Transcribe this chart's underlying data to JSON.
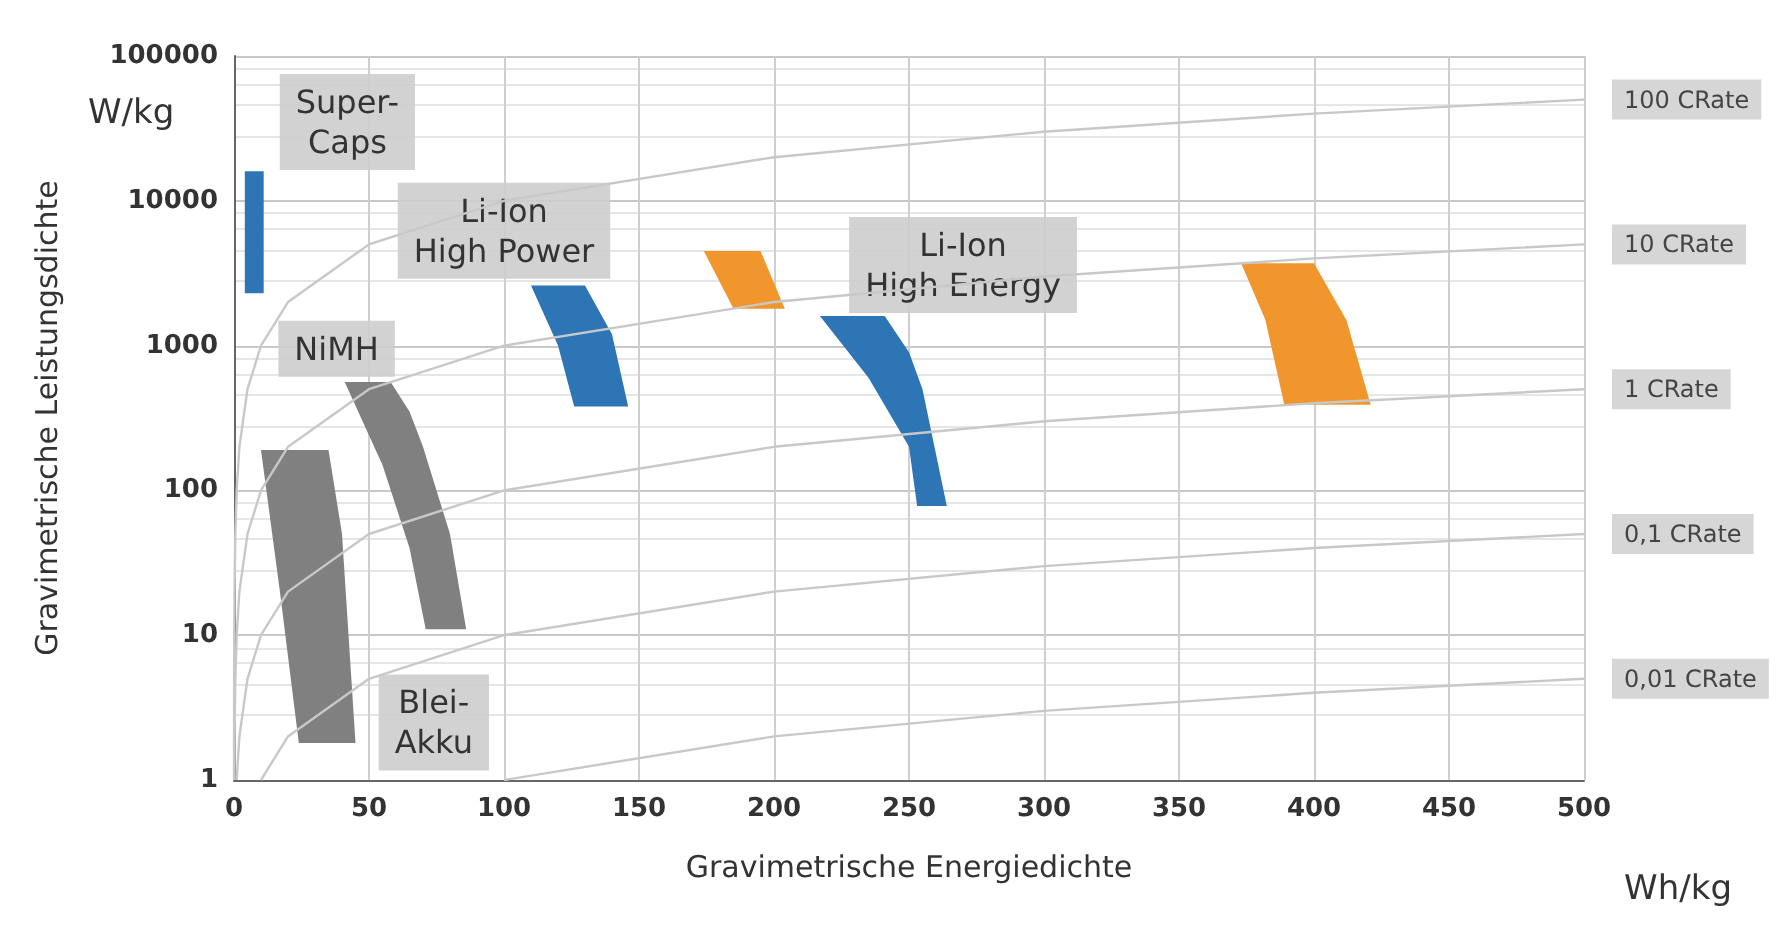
{
  "chart_data": {
    "type": "area",
    "xlabel": "Gravimetrische Energiedichte",
    "ylabel": "Gravimetrische Leistungsdichte",
    "xlim": [
      0,
      500
    ],
    "xticks": [
      0,
      50,
      100,
      150,
      200,
      250,
      300,
      350,
      400,
      450,
      500
    ],
    "ylim": [
      1,
      100000
    ],
    "yticks": [
      1,
      10,
      100,
      1000,
      10000,
      100000
    ],
    "log": "y",
    "grid": true,
    "legend": false,
    "series": [
      {
        "type": "line",
        "name": "100 CRate",
        "color": "#c8c8c8",
        "x": [
          0.01,
          0.02,
          0.05,
          0.1,
          0.2,
          0.5,
          1,
          2,
          5,
          10,
          20,
          50,
          100,
          200,
          300,
          400,
          500
        ],
        "values": [
          1,
          2,
          5,
          10,
          20,
          50,
          100,
          200,
          500,
          1000,
          2000,
          5000,
          10000,
          20000,
          30000,
          40000,
          50000
        ]
      },
      {
        "type": "line",
        "name": "10 CRate",
        "color": "#c8c8c8",
        "x": [
          0.1,
          0.2,
          0.5,
          1,
          2,
          5,
          10,
          20,
          50,
          100,
          200,
          300,
          400,
          500
        ],
        "values": [
          1,
          2,
          5,
          10,
          20,
          50,
          100,
          200,
          500,
          1000,
          2000,
          3000,
          4000,
          5000
        ]
      },
      {
        "type": "line",
        "name": "1 CRate",
        "color": "#c8c8c8",
        "x": [
          1,
          2,
          5,
          10,
          20,
          50,
          100,
          200,
          300,
          400,
          500
        ],
        "values": [
          1,
          2,
          5,
          10,
          20,
          50,
          100,
          200,
          300,
          400,
          500
        ]
      },
      {
        "type": "line",
        "name": "0,1 CRate",
        "color": "#c8c8c8",
        "x": [
          10,
          20,
          50,
          100,
          200,
          300,
          400,
          500
        ],
        "values": [
          1,
          2,
          5,
          10,
          20,
          30,
          40,
          50
        ]
      },
      {
        "type": "line",
        "name": "0,01 CRate",
        "color": "#c8c8c8",
        "x": [
          100,
          200,
          300,
          400,
          500
        ],
        "values": [
          1,
          2,
          3,
          4,
          5
        ]
      },
      {
        "color": "#2e75b6",
        "x": [
          4,
          11,
          11,
          4
        ],
        "values": [
          16000,
          16000,
          2300,
          2300
        ]
      },
      {
        "color": "#808080",
        "x": [
          10,
          35,
          40,
          45,
          24,
          17
        ],
        "values": [
          190,
          190,
          50,
          1.8,
          1.8,
          20
        ]
      },
      {
        "color": "#808080",
        "x": [
          41,
          58,
          65,
          70,
          80,
          86,
          71,
          65,
          55
        ],
        "values": [
          560,
          560,
          350,
          200,
          50,
          11,
          11,
          40,
          150
        ]
      },
      {
        "color": "#2e75b6",
        "x": [
          110,
          130,
          140,
          146,
          126,
          120
        ],
        "values": [
          2600,
          2600,
          1200,
          380,
          380,
          1000
        ]
      },
      {
        "color": "#f0962d",
        "x": [
          174,
          195,
          204,
          185
        ],
        "values": [
          4500,
          4500,
          1800,
          1800
        ]
      },
      {
        "color": "#2e75b6",
        "x": [
          217,
          241,
          250,
          255,
          264,
          253,
          250,
          235
        ],
        "values": [
          1600,
          1600,
          900,
          500,
          78,
          78,
          200,
          600
        ]
      },
      {
        "color": "#f0962d",
        "x": [
          373,
          400,
          412,
          421,
          389,
          382
        ],
        "values": [
          3700,
          3700,
          1500,
          390,
          390,
          1500
        ]
      }
    ],
    "annotations": [
      "W/kg",
      "Wh/kg",
      "Super-\nCaps",
      "NiMH",
      "Li-Ion\nHigh Power",
      "Li-Ion\nHigh Energy",
      "Blei-\nAkku"
    ]
  }
}
